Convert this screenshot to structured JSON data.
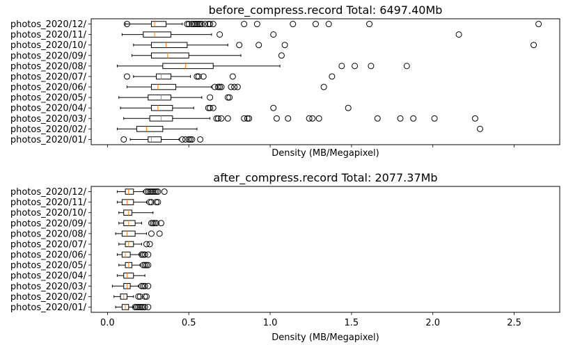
{
  "chart_data": [
    {
      "type": "boxplot",
      "orientation": "horizontal",
      "title": "before_compress.record Total: 6497.40Mb",
      "xlabel": "Density (MB/Megapixel)",
      "ylabel": "",
      "xlim": [
        -0.1,
        2.78
      ],
      "xticks": [
        0.0,
        0.5,
        1.0,
        1.5,
        2.0,
        2.5
      ],
      "show_xtick_labels": false,
      "grid": false,
      "median_color": "#ff7f0e",
      "categories": [
        "photos_2020/01/",
        "photos_2020/02/",
        "photos_2020/03/",
        "photos_2020/04/",
        "photos_2020/05/",
        "photos_2020/06/",
        "photos_2020/07/",
        "photos_2020/08/",
        "photos_2020/09/",
        "photos_2020/10/",
        "photos_2020/11/",
        "photos_2020/12/"
      ],
      "boxes": [
        {
          "whislo": 0.14,
          "q1": 0.25,
          "med": 0.27,
          "q3": 0.33,
          "whishi": 0.44,
          "fliers": [
            0.1,
            0.46,
            0.48,
            0.5,
            0.52,
            0.51,
            0.57
          ]
        },
        {
          "whislo": 0.06,
          "q1": 0.18,
          "med": 0.24,
          "q3": 0.34,
          "whishi": 0.55,
          "fliers": [
            2.29
          ]
        },
        {
          "whislo": 0.1,
          "q1": 0.26,
          "med": 0.33,
          "q3": 0.4,
          "whishi": 0.63,
          "fliers": [
            0.67,
            0.68,
            0.7,
            0.74,
            0.84,
            0.86,
            0.87,
            1.04,
            1.11,
            1.24,
            1.26,
            1.3,
            1.66,
            1.8,
            1.88,
            2.01,
            2.26
          ]
        },
        {
          "whislo": 0.08,
          "q1": 0.27,
          "med": 0.31,
          "q3": 0.4,
          "whishi": 0.53,
          "fliers": [
            0.62,
            0.63,
            0.65,
            1.02,
            1.48
          ]
        },
        {
          "whislo": 0.07,
          "q1": 0.25,
          "med": 0.33,
          "q3": 0.39,
          "whishi": 0.58,
          "fliers": [
            0.63,
            0.74,
            0.75
          ]
        },
        {
          "whislo": 0.12,
          "q1": 0.27,
          "med": 0.31,
          "q3": 0.42,
          "whishi": 0.64,
          "fliers": [
            0.66,
            0.68,
            0.69,
            0.7,
            0.76,
            0.78,
            0.8,
            1.33
          ]
        },
        {
          "whislo": 0.16,
          "q1": 0.3,
          "med": 0.33,
          "q3": 0.39,
          "whishi": 0.51,
          "fliers": [
            0.12,
            0.55,
            0.56,
            0.59,
            0.77,
            1.38
          ]
        },
        {
          "whislo": 0.06,
          "q1": 0.34,
          "med": 0.48,
          "q3": 0.65,
          "whishi": 1.06,
          "fliers": [
            1.44,
            1.52,
            1.62,
            1.84
          ]
        },
        {
          "whislo": 0.15,
          "q1": 0.27,
          "med": 0.37,
          "q3": 0.5,
          "whishi": 0.82,
          "fliers": [
            1.07
          ]
        },
        {
          "whislo": 0.16,
          "q1": 0.27,
          "med": 0.36,
          "q3": 0.49,
          "whishi": 0.74,
          "fliers": [
            0.81,
            0.93,
            1.09,
            2.62
          ]
        },
        {
          "whislo": 0.09,
          "q1": 0.22,
          "med": 0.29,
          "q3": 0.39,
          "whishi": 0.64,
          "fliers": [
            0.69,
            1.02,
            2.16
          ]
        },
        {
          "whislo": 0.11,
          "q1": 0.27,
          "med": 0.29,
          "q3": 0.36,
          "whishi": 0.46,
          "fliers": [
            0.12,
            0.49,
            0.5,
            0.52,
            0.53,
            0.54,
            0.55,
            0.56,
            0.57,
            0.58,
            0.6,
            0.62,
            0.63,
            0.65,
            0.84,
            0.92,
            1.14,
            1.28,
            1.36,
            1.61,
            2.65
          ]
        }
      ]
    },
    {
      "type": "boxplot",
      "orientation": "horizontal",
      "title": "after_compress.record Total: 2077.37Mb",
      "xlabel": "Density (MB/Megapixel)",
      "ylabel": "",
      "xlim": [
        -0.1,
        2.78
      ],
      "xticks": [
        0.0,
        0.5,
        1.0,
        1.5,
        2.0,
        2.5
      ],
      "xtick_labels": [
        "0.0",
        "0.5",
        "1.0",
        "1.5",
        "2.0",
        "2.5"
      ],
      "show_xtick_labels": true,
      "grid": false,
      "median_color": "#ff7f0e",
      "categories": [
        "photos_2020/01/",
        "photos_2020/02/",
        "photos_2020/03/",
        "photos_2020/04/",
        "photos_2020/05/",
        "photos_2020/06/",
        "photos_2020/07/",
        "photos_2020/08/",
        "photos_2020/09/",
        "photos_2020/10/",
        "photos_2020/11/",
        "photos_2020/12/"
      ],
      "boxes": [
        {
          "whislo": 0.05,
          "q1": 0.09,
          "med": 0.11,
          "q3": 0.13,
          "whishi": 0.16,
          "fliers": [
            0.17,
            0.18,
            0.19,
            0.2,
            0.21,
            0.22,
            0.23,
            0.25
          ]
        },
        {
          "whislo": 0.04,
          "q1": 0.08,
          "med": 0.1,
          "q3": 0.12,
          "whishi": 0.16,
          "fliers": [
            0.19,
            0.2,
            0.23,
            0.24
          ]
        },
        {
          "whislo": 0.03,
          "q1": 0.1,
          "med": 0.12,
          "q3": 0.14,
          "whishi": 0.19,
          "fliers": [
            0.21,
            0.22,
            0.23,
            0.25
          ]
        },
        {
          "whislo": 0.06,
          "q1": 0.1,
          "med": 0.12,
          "q3": 0.16,
          "whishi": 0.23,
          "fliers": []
        },
        {
          "whislo": 0.07,
          "q1": 0.11,
          "med": 0.13,
          "q3": 0.15,
          "whishi": 0.2,
          "fliers": [
            0.22,
            0.23,
            0.24,
            0.25
          ]
        },
        {
          "whislo": 0.06,
          "q1": 0.09,
          "med": 0.11,
          "q3": 0.14,
          "whishi": 0.2,
          "fliers": [
            0.21,
            0.22,
            0.23,
            0.25
          ]
        },
        {
          "whislo": 0.07,
          "q1": 0.11,
          "med": 0.13,
          "q3": 0.16,
          "whishi": 0.21,
          "fliers": [
            0.24,
            0.26
          ]
        },
        {
          "whislo": 0.05,
          "q1": 0.09,
          "med": 0.12,
          "q3": 0.17,
          "whishi": 0.24,
          "fliers": [
            0.27,
            0.32
          ]
        },
        {
          "whislo": 0.07,
          "q1": 0.1,
          "med": 0.13,
          "q3": 0.17,
          "whishi": 0.21,
          "fliers": [
            0.27,
            0.28,
            0.29,
            0.3,
            0.33
          ]
        },
        {
          "whislo": 0.07,
          "q1": 0.1,
          "med": 0.13,
          "q3": 0.15,
          "whishi": 0.28,
          "fliers": []
        },
        {
          "whislo": 0.06,
          "q1": 0.09,
          "med": 0.12,
          "q3": 0.16,
          "whishi": 0.24,
          "fliers": [
            0.26,
            0.27,
            0.3,
            0.31
          ]
        },
        {
          "whislo": 0.06,
          "q1": 0.11,
          "med": 0.13,
          "q3": 0.16,
          "whishi": 0.22,
          "fliers": [
            0.24,
            0.25,
            0.26,
            0.27,
            0.28,
            0.29,
            0.3,
            0.31,
            0.35
          ]
        }
      ]
    }
  ]
}
